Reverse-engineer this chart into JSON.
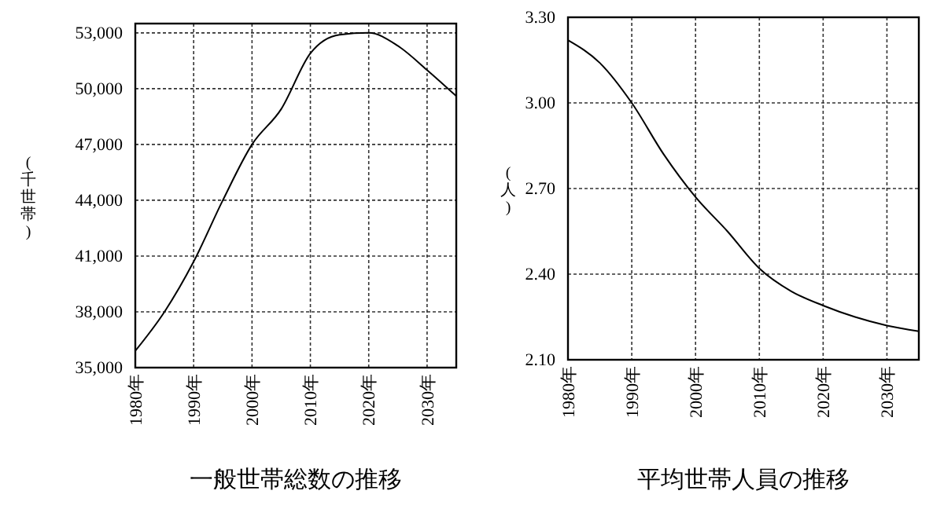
{
  "chart_data": [
    {
      "type": "line",
      "title": "一般世帯総数の推移",
      "ylabel": "(千世帯)",
      "x": [
        1980,
        1985,
        1990,
        1995,
        2000,
        2005,
        2010,
        2015,
        2020,
        2025,
        2030,
        2035
      ],
      "series": [
        {
          "color": "#000000",
          "values": [
            35900,
            38000,
            40700,
            44000,
            47000,
            48900,
            51900,
            52900,
            53000,
            52300,
            51000,
            49600
          ]
        }
      ],
      "xlim": [
        1980,
        2035
      ],
      "xticks": [
        {
          "value": 1980,
          "label": "1980年"
        },
        {
          "value": 1990,
          "label": "1990年"
        },
        {
          "value": 2000,
          "label": "2000年"
        },
        {
          "value": 2010,
          "label": "2010年"
        },
        {
          "value": 2020,
          "label": "2020年"
        },
        {
          "value": 2030,
          "label": "2030年"
        }
      ],
      "ylim": [
        35000,
        53500
      ],
      "yticks": [
        {
          "value": 35000,
          "label": "35,000"
        },
        {
          "value": 38000,
          "label": "38,000"
        },
        {
          "value": 41000,
          "label": "41,000"
        },
        {
          "value": 44000,
          "label": "44,000"
        },
        {
          "value": 47000,
          "label": "47,000"
        },
        {
          "value": 50000,
          "label": "50,000"
        },
        {
          "value": 53000,
          "label": "53,000"
        }
      ],
      "grid": true,
      "marker": "none",
      "line_style": "solid"
    },
    {
      "type": "line",
      "title": "平均世帯人員の推移",
      "ylabel": "(人)",
      "x": [
        1980,
        1985,
        1990,
        1995,
        2000,
        2005,
        2010,
        2015,
        2020,
        2025,
        2030,
        2035
      ],
      "series": [
        {
          "color": "#000000",
          "values": [
            3.22,
            3.14,
            3.0,
            2.82,
            2.67,
            2.55,
            2.42,
            2.34,
            2.29,
            2.25,
            2.22,
            2.2
          ]
        }
      ],
      "xlim": [
        1980,
        2035
      ],
      "xticks": [
        {
          "value": 1980,
          "label": "1980年"
        },
        {
          "value": 1990,
          "label": "1990年"
        },
        {
          "value": 2000,
          "label": "2000年"
        },
        {
          "value": 2010,
          "label": "2010年"
        },
        {
          "value": 2020,
          "label": "2020年"
        },
        {
          "value": 2030,
          "label": "2030年"
        }
      ],
      "ylim": [
        2.1,
        3.3
      ],
      "yticks": [
        {
          "value": 2.1,
          "label": "2.10"
        },
        {
          "value": 2.4,
          "label": "2.40"
        },
        {
          "value": 2.7,
          "label": "2.70"
        },
        {
          "value": 3.0,
          "label": "3.00"
        },
        {
          "value": 3.3,
          "label": "3.30"
        }
      ],
      "grid": true,
      "marker": "none",
      "line_style": "solid"
    }
  ]
}
